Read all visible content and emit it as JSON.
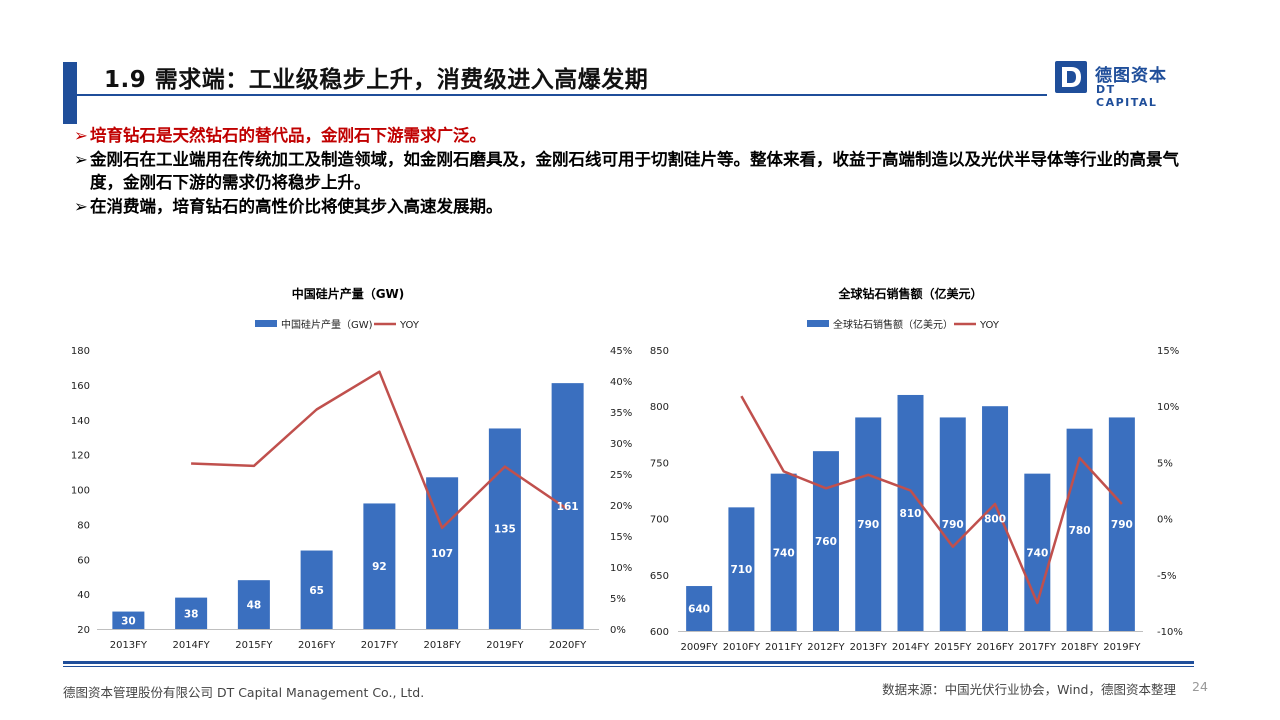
{
  "header": {
    "title": "1.9 需求端：工业级稳步上升，消费级进入高爆发期",
    "logo_cn": "德图资本",
    "logo_en": "DT CAPITAL",
    "logo_letter": "D"
  },
  "bullets": [
    {
      "arrow": "➢",
      "text": "培育钻石是天然钻石的替代品，金刚石下游需求广泛。",
      "color": "#c00000"
    },
    {
      "arrow": "➢",
      "text": "金刚石在工业端用在传统加工及制造领域，如金刚石磨具及，金刚石线可用于切割硅片等。整体来看，收益于高端制造以及光伏半导体等行业的高景气度，金刚石下游的需求仍将稳步上升。",
      "color": "#000000"
    },
    {
      "arrow": "➢",
      "text": "在消费端，培育钻石的高性价比将使其步入高速发展期。",
      "color": "#000000"
    }
  ],
  "chart_data": [
    {
      "type": "bar",
      "title": "中国硅片产量（GW)",
      "categories": [
        "2013FY",
        "2014FY",
        "2015FY",
        "2016FY",
        "2017FY",
        "2018FY",
        "2019FY",
        "2020FY"
      ],
      "series": [
        {
          "name": "中国硅片产量（GW)",
          "type": "bar",
          "values": [
            30,
            38,
            48,
            65,
            92,
            107,
            135,
            161
          ],
          "color": "#3a6fbf",
          "axis": "left"
        },
        {
          "name": "YOY",
          "type": "line",
          "values": [
            null,
            26.7,
            26.3,
            35.4,
            41.5,
            16.3,
            26.2,
            19.3
          ],
          "color": "#c0504d",
          "axis": "right"
        }
      ],
      "ylim": [
        20,
        180
      ],
      "yticks": [
        20,
        40,
        60,
        80,
        100,
        120,
        140,
        160,
        180
      ],
      "y2lim": [
        0,
        45
      ],
      "y2ticks": [
        "0%",
        "5%",
        "10%",
        "15%",
        "20%",
        "25%",
        "30%",
        "35%",
        "40%",
        "45%"
      ],
      "data_labels": [
        "30",
        "38",
        "48",
        "65",
        "92",
        "107",
        "135",
        "161"
      ],
      "legend": "top"
    },
    {
      "type": "bar",
      "title": "全球钻石销售额（亿美元）",
      "categories": [
        "2009FY",
        "2010FY",
        "2011FY",
        "2012FY",
        "2013FY",
        "2014FY",
        "2015FY",
        "2016FY",
        "2017FY",
        "2018FY",
        "2019FY"
      ],
      "series": [
        {
          "name": "全球钻石销售额（亿美元）",
          "type": "bar",
          "values": [
            640,
            710,
            740,
            760,
            790,
            810,
            790,
            800,
            740,
            780,
            790
          ],
          "color": "#3a6fbf",
          "axis": "left"
        },
        {
          "name": "YOY",
          "type": "line",
          "values": [
            null,
            10.9,
            4.2,
            2.7,
            3.9,
            2.5,
            -2.5,
            1.3,
            -7.5,
            5.4,
            1.3
          ],
          "color": "#c0504d",
          "axis": "right"
        }
      ],
      "ylim": [
        600,
        850
      ],
      "yticks": [
        600,
        650,
        700,
        750,
        800,
        850
      ],
      "y2lim": [
        -10,
        15
      ],
      "y2ticks": [
        "-10%",
        "-5%",
        "0%",
        "5%",
        "10%",
        "15%"
      ],
      "data_labels": [
        "640",
        "710",
        "740",
        "760",
        "790",
        "810",
        "790",
        "800",
        "740",
        "780",
        "790"
      ],
      "legend": "top"
    }
  ],
  "footer": {
    "left": "德图资本管理股份有限公司  DT Capital Management Co., Ltd.",
    "right": "数据来源：中国光伏行业协会，Wind，德图资本整理",
    "page": "24"
  }
}
